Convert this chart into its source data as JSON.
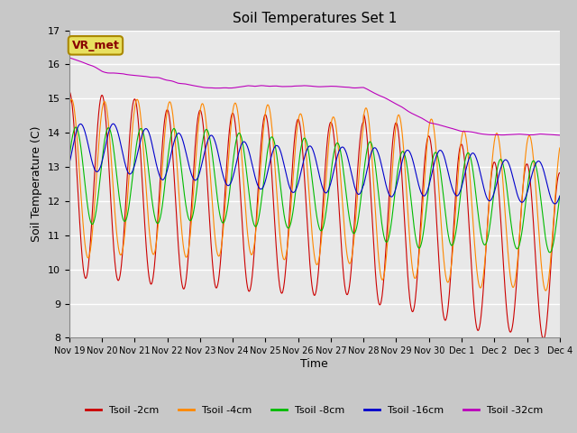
{
  "title": "Soil Temperatures Set 1",
  "xlabel": "Time",
  "ylabel": "Soil Temperature (C)",
  "ylim": [
    8.0,
    17.0
  ],
  "yticks": [
    8.0,
    9.0,
    10.0,
    11.0,
    12.0,
    13.0,
    14.0,
    15.0,
    16.0,
    17.0
  ],
  "fig_bg_color": "#c8c8c8",
  "plot_bg_color": "#e8e8e8",
  "line_colors": {
    "2cm": "#cc0000",
    "4cm": "#ff8800",
    "8cm": "#00bb00",
    "16cm": "#0000cc",
    "32cm": "#bb00bb"
  },
  "legend_labels": {
    "2cm": "Tsoil -2cm",
    "4cm": "Tsoil -4cm",
    "8cm": "Tsoil -8cm",
    "16cm": "Tsoil -16cm",
    "32cm": "Tsoil -32cm"
  },
  "vr_met_label": "VR_met",
  "vr_met_color": "#880000",
  "vr_met_bg": "#e8e060",
  "x_tick_labels": [
    "Nov 19",
    "Nov 20",
    "Nov 21",
    "Nov 22",
    "Nov 23",
    "Nov 24",
    "Nov 25",
    "Nov 26",
    "Nov 27",
    "Nov 28",
    "Nov 29",
    "Nov 30",
    "Dec 1",
    "Dec 2",
    "Dec 3",
    "Dec 4"
  ],
  "n_points": 1440
}
